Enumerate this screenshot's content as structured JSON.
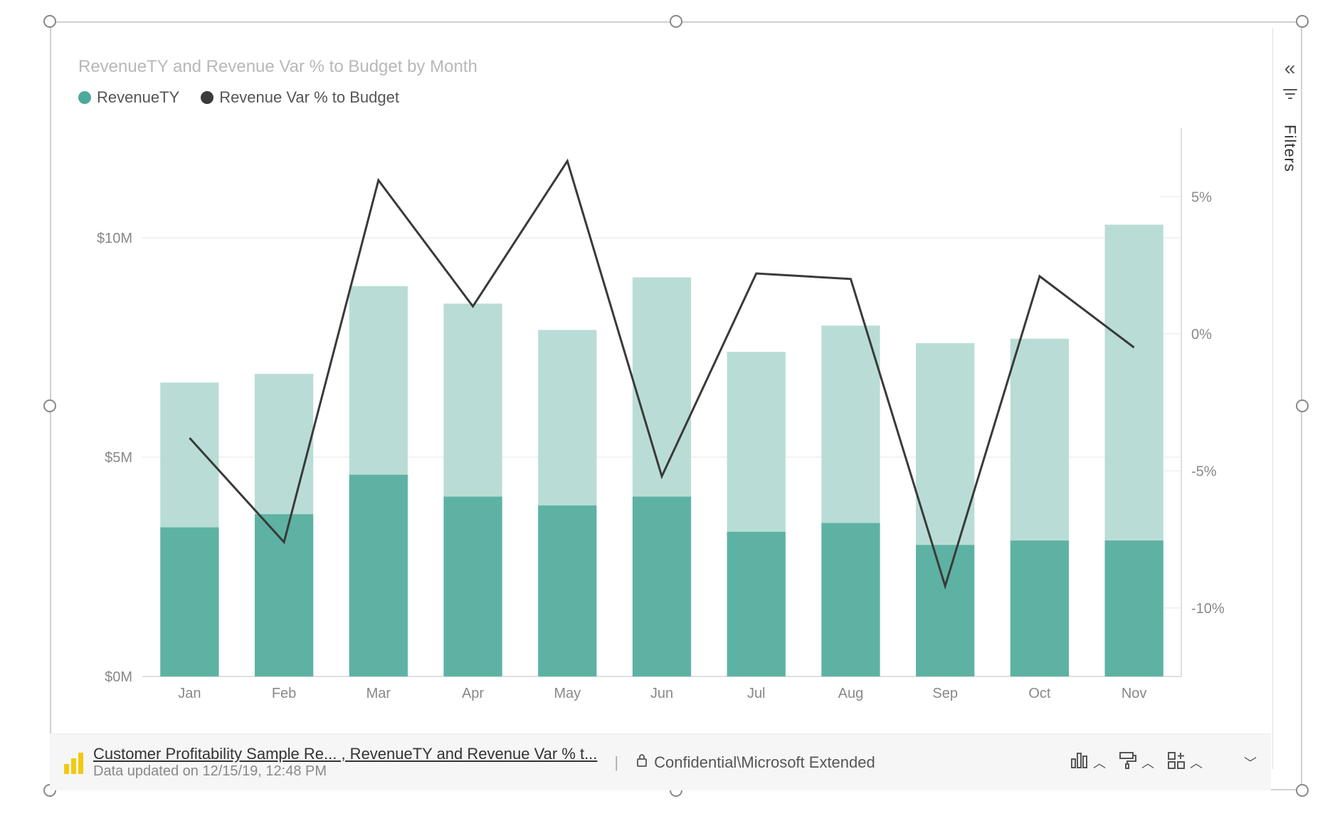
{
  "chart": {
    "type": "bar+line",
    "title": "RevenueTY and Revenue Var % to Budget by Month",
    "legend": [
      {
        "label": "RevenueTY",
        "color": "#4da99a",
        "shape": "circle"
      },
      {
        "label": "Revenue Var % to Budget",
        "color": "#3a3a3a",
        "shape": "circle"
      }
    ],
    "categories": [
      "Jan",
      "Feb",
      "Mar",
      "Apr",
      "May",
      "Jun",
      "Jul",
      "Aug",
      "Sep",
      "Oct",
      "Nov"
    ],
    "bar_series": {
      "name": "RevenueTY",
      "stack_top_color": "#b9ddd6",
      "stack_bottom_color": "#5eb2a3",
      "totals": [
        6.7,
        6.9,
        8.9,
        8.5,
        7.9,
        9.1,
        7.4,
        8.0,
        7.6,
        7.7,
        10.3
      ],
      "bottoms": [
        3.4,
        3.7,
        4.6,
        4.1,
        3.9,
        4.1,
        3.3,
        3.5,
        3.0,
        3.1,
        3.1
      ]
    },
    "line_series": {
      "name": "Revenue Var % to Budget",
      "color": "#3a3a3a",
      "values": [
        -3.8,
        -7.6,
        5.6,
        1.0,
        6.3,
        -5.2,
        2.2,
        2.0,
        -9.2,
        2.1,
        -0.5
      ]
    },
    "y_left": {
      "min": 0,
      "max": 12.5,
      "ticks": [
        0,
        5,
        10
      ],
      "tick_labels": [
        "$0M",
        "$5M",
        "$10M"
      ],
      "gridlines": [
        5,
        10
      ]
    },
    "y_right": {
      "min": -12.5,
      "max": 7.5,
      "ticks": [
        -10,
        -5,
        0,
        5
      ],
      "tick_labels": [
        "-10%",
        "-5%",
        "0%",
        "5%"
      ]
    },
    "style": {
      "background_color": "#ffffff",
      "grid_color": "#e6e6e6",
      "axis_text_color": "#888888",
      "title_color": "#b8b8b8",
      "title_fontsize": 24,
      "legend_fontsize": 22,
      "tick_fontsize": 20,
      "bar_width_ratio": 0.62,
      "line_width": 3
    }
  },
  "filters_panel": {
    "label": "Filters"
  },
  "footer": {
    "breadcrumb": "Customer Profitability Sample Re... , RevenueTY and Revenue Var % t...",
    "updated": "Data updated on 12/15/19, 12:48 PM",
    "sensitivity": "Confidential\\Microsoft Extended"
  }
}
